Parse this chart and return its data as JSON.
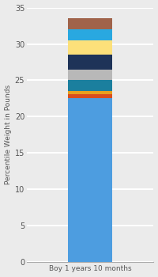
{
  "category": "Boy 1 years 10 months",
  "segments": [
    {
      "label": "base_blue",
      "value": 22.5,
      "color": "#4d9de0"
    },
    {
      "label": "orange",
      "value": 0.6,
      "color": "#d94e1f"
    },
    {
      "label": "gold",
      "value": 0.4,
      "color": "#e8a020"
    },
    {
      "label": "teal",
      "value": 1.5,
      "color": "#1b7f9e"
    },
    {
      "label": "silver",
      "value": 1.5,
      "color": "#b8b8b8"
    },
    {
      "label": "navy",
      "value": 2.0,
      "color": "#1e3358"
    },
    {
      "label": "yellow",
      "value": 2.0,
      "color": "#fce07a"
    },
    {
      "label": "sky_blue",
      "value": 1.5,
      "color": "#29a8e0"
    },
    {
      "label": "brown",
      "value": 1.5,
      "color": "#a0634a"
    }
  ],
  "ylabel": "Percentile Weight in Pounds",
  "xlabel": "Boy 1 years 10 months",
  "ylim": [
    0,
    35
  ],
  "yticks": [
    0,
    5,
    10,
    15,
    20,
    25,
    30,
    35
  ],
  "background_color": "#ebebeb",
  "grid_color": "#ffffff",
  "bar_width": 0.35,
  "figsize": [
    2.0,
    3.5
  ],
  "dpi": 100
}
